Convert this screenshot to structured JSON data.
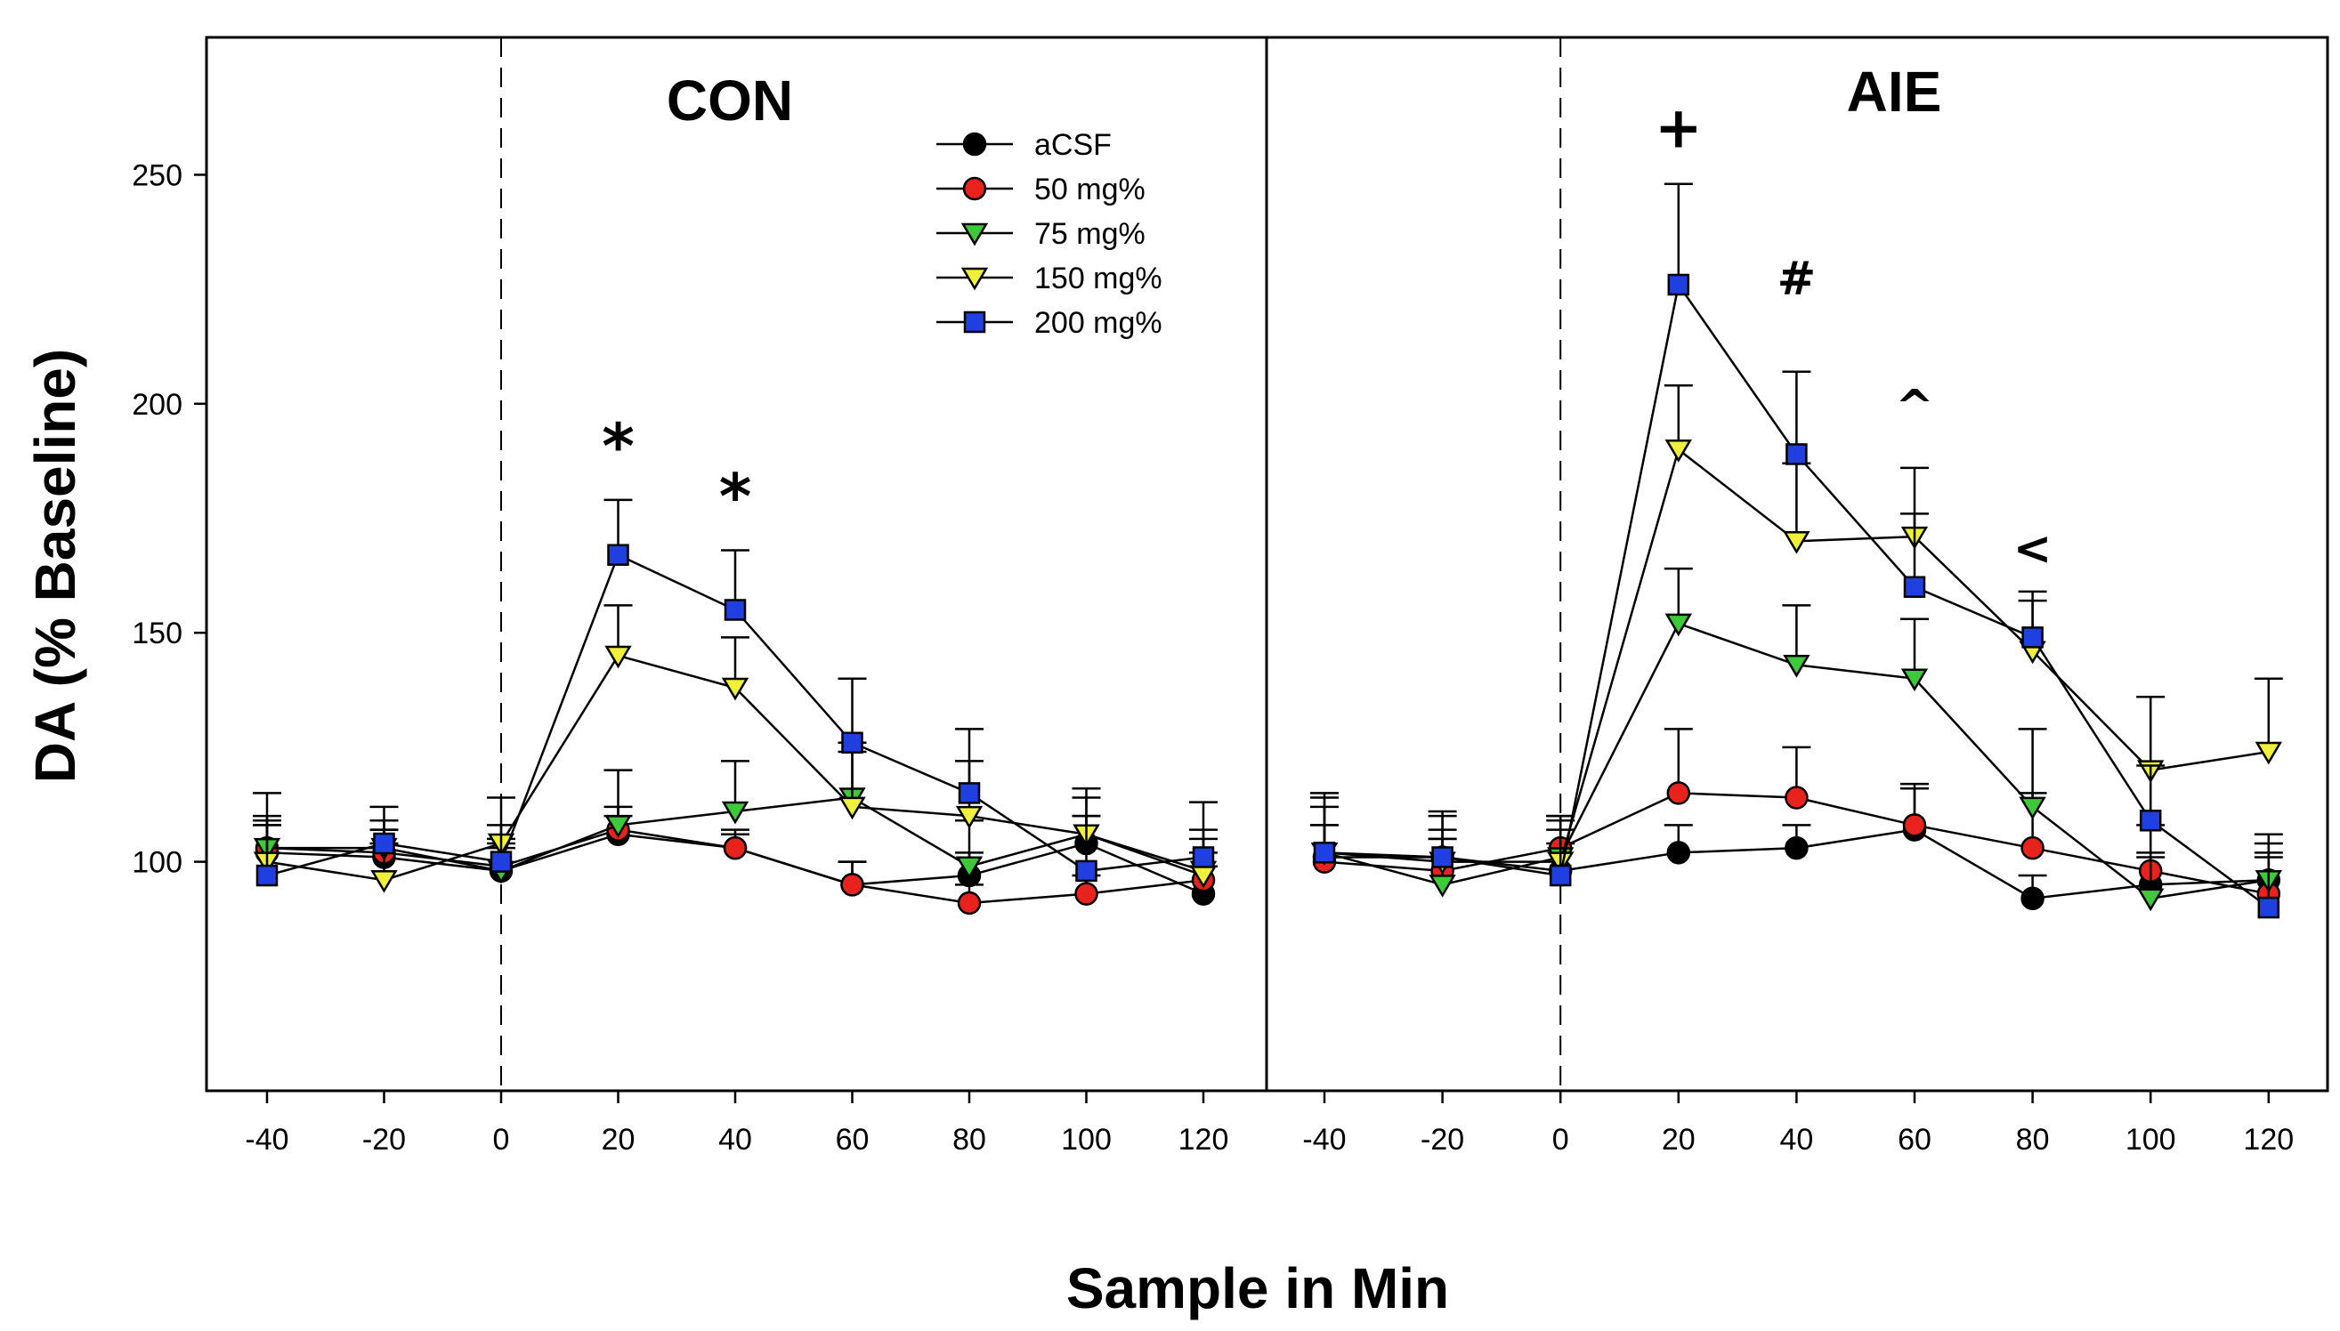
{
  "chart_data": {
    "type": "line",
    "y_label": "DA (% Baseline)",
    "x_label": "Sample in Min",
    "ylim": [
      50,
      280
    ],
    "y_ticks": [
      100,
      150,
      200,
      250
    ],
    "x_ticks": [
      -40,
      -20,
      0,
      20,
      40,
      60,
      80,
      100,
      120
    ],
    "reference_line_x": 0,
    "legend": [
      {
        "name": "aCSF",
        "marker": "circle",
        "color": "#000000"
      },
      {
        "name": "50 mg%",
        "marker": "circle",
        "color": "#e8231d"
      },
      {
        "name": "75 mg%",
        "marker": "triangle-down",
        "color": "#3ec93a"
      },
      {
        "name": "150 mg%",
        "marker": "triangle-down",
        "color": "#f0f03a"
      },
      {
        "name": "200 mg%",
        "marker": "square",
        "color": "#1f3fe0"
      }
    ],
    "panels": [
      {
        "title": "CON",
        "x": [
          -40,
          -20,
          0,
          20,
          40,
          60,
          80,
          100,
          120
        ],
        "series": [
          {
            "name": "aCSF",
            "values": [
              102,
              101,
              98,
              106,
              103,
              95,
              97,
              104,
              93
            ],
            "errors": [
              6,
              6,
              6,
              4,
              3,
              5,
              5,
              6,
              6
            ]
          },
          {
            "name": "50 mg%",
            "values": [
              103,
              102,
              99,
              107,
              103,
              95,
              91,
              93,
              96
            ],
            "errors": [
              6,
              5,
              6,
              5,
              4,
              5,
              4,
              4,
              6
            ]
          },
          {
            "name": "75 mg%",
            "values": [
              103,
              103,
              98,
              108,
              111,
              114,
              99,
              106,
              98
            ],
            "errors": [
              7,
              6,
              5,
              12,
              11,
              12,
              10,
              8,
              9
            ]
          },
          {
            "name": "150 mg%",
            "values": [
              100,
              96,
              104,
              145,
              138,
              112,
              110,
              106,
              97
            ],
            "errors": [
              15,
              8,
              10,
              11,
              11,
              12,
              12,
              10,
              8
            ]
          },
          {
            "name": "200 mg%",
            "values": [
              97,
              104,
              100,
              167,
              155,
              126,
              115,
              98,
              101
            ],
            "errors": [
              11,
              8,
              8,
              12,
              13,
              14,
              14,
              12,
              12
            ]
          }
        ],
        "annotations": [
          {
            "x": 20,
            "y": 186,
            "text": "*"
          },
          {
            "x": 40,
            "y": 175,
            "text": "*"
          }
        ]
      },
      {
        "title": "AIE",
        "x": [
          -40,
          -20,
          0,
          20,
          40,
          60,
          80,
          100,
          120
        ],
        "series": [
          {
            "name": "aCSF",
            "values": [
              101,
              101,
              98,
              102,
              103,
              107,
              92,
              95,
              96
            ],
            "errors": [
              7,
              6,
              6,
              6,
              5,
              9,
              5,
              6,
              8
            ]
          },
          {
            "name": "50 mg%",
            "values": [
              100,
              98,
              103,
              115,
              114,
              108,
              103,
              98,
              93
            ],
            "errors": [
              8,
              7,
              7,
              14,
              11,
              9,
              12,
              10,
              8
            ]
          },
          {
            "name": "75 mg%",
            "values": [
              102,
              95,
              101,
              152,
              143,
              140,
              112,
              92,
              96
            ],
            "errors": [
              10,
              10,
              8,
              12,
              13,
              13,
              17,
              10,
              10
            ]
          },
          {
            "name": "150 mg%",
            "values": [
              102,
              100,
              100,
              190,
              170,
              171,
              146,
              120,
              124
            ],
            "errors": [
              12,
              10,
              10,
              14,
              17,
              15,
              11,
              16,
              16
            ]
          },
          {
            "name": "200 mg%",
            "values": [
              102,
              101,
              97,
              226,
              189,
              160,
              149,
              109,
              90
            ],
            "errors": [
              13,
              10,
              10,
              22,
              18,
              16,
              10,
              12,
              12
            ]
          }
        ],
        "annotations": [
          {
            "x": 20,
            "y": 256,
            "text": "+"
          },
          {
            "x": 40,
            "y": 224,
            "text": "#"
          },
          {
            "x": 60,
            "y": 196,
            "text": "^"
          },
          {
            "x": 80,
            "y": 165,
            "text": "<"
          }
        ]
      }
    ]
  }
}
